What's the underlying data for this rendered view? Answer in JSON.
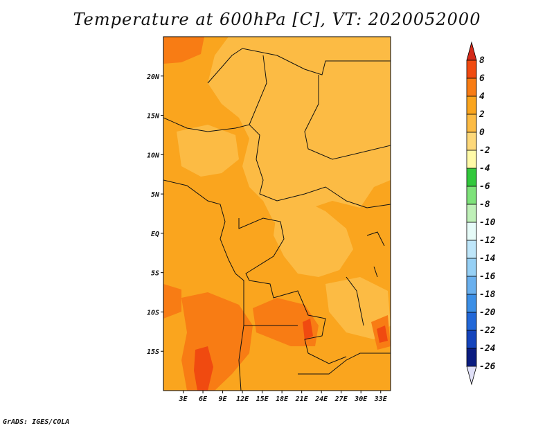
{
  "chart_data": {
    "type": "heatmap",
    "title": "Temperature at 600hPa [C], VT: 2020052000",
    "x_ticks": [
      "3E",
      "6E",
      "9E",
      "12E",
      "15E",
      "18E",
      "21E",
      "24E",
      "27E",
      "30E",
      "33E"
    ],
    "x_tick_values": [
      3,
      6,
      9,
      12,
      15,
      18,
      21,
      24,
      27,
      30,
      33
    ],
    "y_ticks": [
      "20N",
      "15N",
      "10N",
      "5N",
      "EQ",
      "5S",
      "10S",
      "15S"
    ],
    "y_tick_values": [
      20,
      15,
      10,
      5,
      0,
      -5,
      -10,
      -15
    ],
    "xlim": [
      0,
      34.5
    ],
    "ylim": [
      -20,
      25
    ],
    "colorbar": {
      "labels": [
        "8",
        "6",
        "4",
        "2",
        "0",
        "-2",
        "-4",
        "-6",
        "-8",
        "-10",
        "-12",
        "-14",
        "-16",
        "-18",
        "-20",
        "-22",
        "-24",
        "-26"
      ],
      "bins": [
        {
          "min": 8,
          "color": "#d42a1a"
        },
        {
          "min": 6,
          "max": 8,
          "color": "#f04a10"
        },
        {
          "min": 4,
          "max": 6,
          "color": "#f87c14"
        },
        {
          "min": 2,
          "max": 4,
          "color": "#faa51e"
        },
        {
          "min": 0,
          "max": 2,
          "color": "#fcbb44"
        },
        {
          "min": -2,
          "max": 0,
          "color": "#fdd87a"
        },
        {
          "min": -4,
          "max": -2,
          "color": "#fffaa8"
        },
        {
          "min": -6,
          "max": -4,
          "color": "#32c83c"
        },
        {
          "min": -8,
          "max": -6,
          "color": "#7ee27a"
        },
        {
          "min": -10,
          "max": -8,
          "color": "#bff0b8"
        },
        {
          "min": -12,
          "max": -10,
          "color": "#e6fbf8"
        },
        {
          "min": -14,
          "max": -12,
          "color": "#bee6fa"
        },
        {
          "min": -16,
          "max": -14,
          "color": "#96d0f5"
        },
        {
          "min": -18,
          "max": -16,
          "color": "#6ab0ee"
        },
        {
          "min": -20,
          "max": -18,
          "color": "#3c8fe6"
        },
        {
          "min": -22,
          "max": -20,
          "color": "#2268d8"
        },
        {
          "min": -24,
          "max": -22,
          "color": "#1444bc"
        },
        {
          "min": -26,
          "max": -24,
          "color": "#0a1c80"
        },
        {
          "max": -26,
          "color": "#e0e0f8"
        }
      ]
    },
    "field_summary": {
      "dominant_range": [
        2,
        4
      ],
      "warm_regions_range": [
        4,
        6
      ],
      "hot_spots_range": [
        6,
        8
      ],
      "cool_regions_range": [
        0,
        2
      ]
    }
  },
  "footer": {
    "credit": "GrADS: IGES/COLA"
  }
}
